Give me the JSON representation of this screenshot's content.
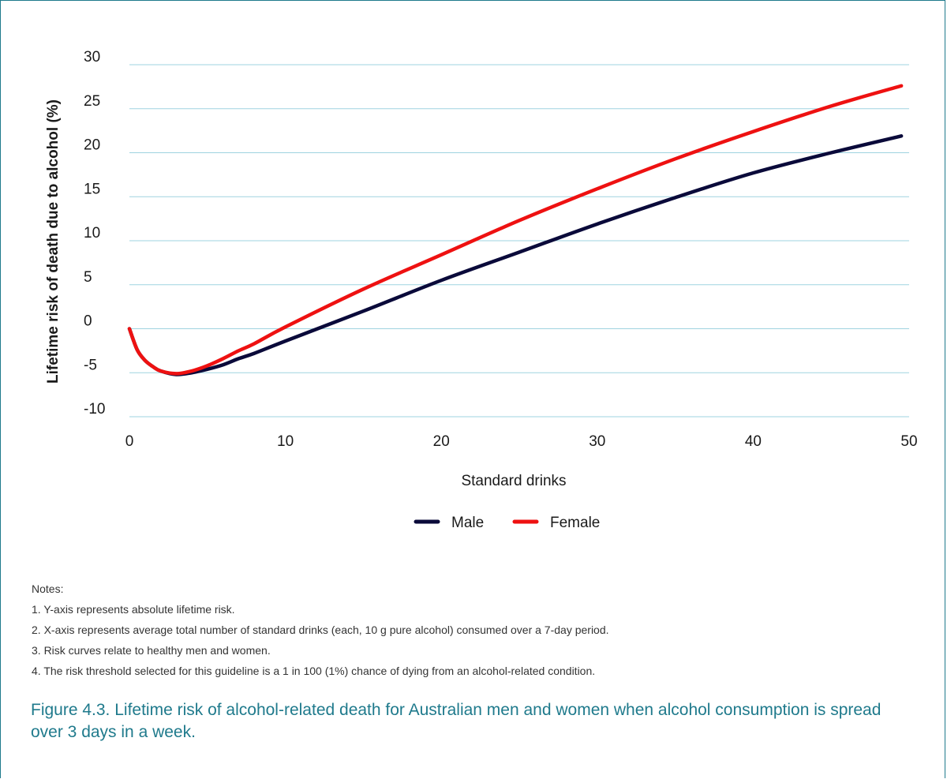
{
  "chart_data": {
    "type": "line",
    "title": "",
    "xlabel": "Standard drinks",
    "ylabel": "Lifetime risk of death due to alcohol (%)",
    "xlim": [
      0,
      50
    ],
    "ylim": [
      -10,
      30
    ],
    "xticks": [
      "0",
      "10",
      "20",
      "30",
      "40",
      "50"
    ],
    "yticks": [
      "-10",
      "-5",
      "0",
      "5",
      "10",
      "15",
      "20",
      "25",
      "30"
    ],
    "grid": "horizontal",
    "legend": "bottom-center",
    "series": [
      {
        "name": "Male",
        "color": "#0a0a3a",
        "x": [
          0,
          0.5,
          1,
          1.5,
          2,
          3,
          4,
          5,
          6,
          7,
          8,
          10,
          15,
          20,
          25,
          30,
          35,
          40,
          45,
          49.5
        ],
        "y": [
          0,
          -2.4,
          -3.6,
          -4.3,
          -4.8,
          -5.2,
          -5.0,
          -4.6,
          -4.1,
          -3.4,
          -2.8,
          -1.4,
          2.0,
          5.5,
          8.7,
          11.9,
          14.9,
          17.7,
          20.0,
          21.9
        ]
      },
      {
        "name": "Female",
        "color": "#ee1111",
        "x": [
          0,
          0.5,
          1,
          1.5,
          2,
          3,
          4,
          5,
          6,
          7,
          8,
          10,
          15,
          20,
          25,
          30,
          35,
          40,
          45,
          49.5
        ],
        "y": [
          0,
          -2.4,
          -3.6,
          -4.3,
          -4.8,
          -5.1,
          -4.8,
          -4.2,
          -3.4,
          -2.5,
          -1.7,
          0.2,
          4.5,
          8.4,
          12.3,
          15.9,
          19.3,
          22.4,
          25.3,
          27.6
        ]
      }
    ]
  },
  "notes": {
    "heading": "Notes:",
    "items": [
      "1.  Y-axis represents absolute lifetime risk.",
      "2. X-axis represents average total number of standard drinks (each, 10 g pure alcohol) consumed over a 7-day period.",
      "3. Risk curves relate to healthy men and women.",
      "4. The risk threshold selected for this guideline is a 1 in 100 (1%) chance of dying from an alcohol-related condition."
    ]
  },
  "caption": "Figure 4.3. Lifetime risk of alcohol-related death for Australian men and women when alcohol consumption is spread over 3 days in a week."
}
